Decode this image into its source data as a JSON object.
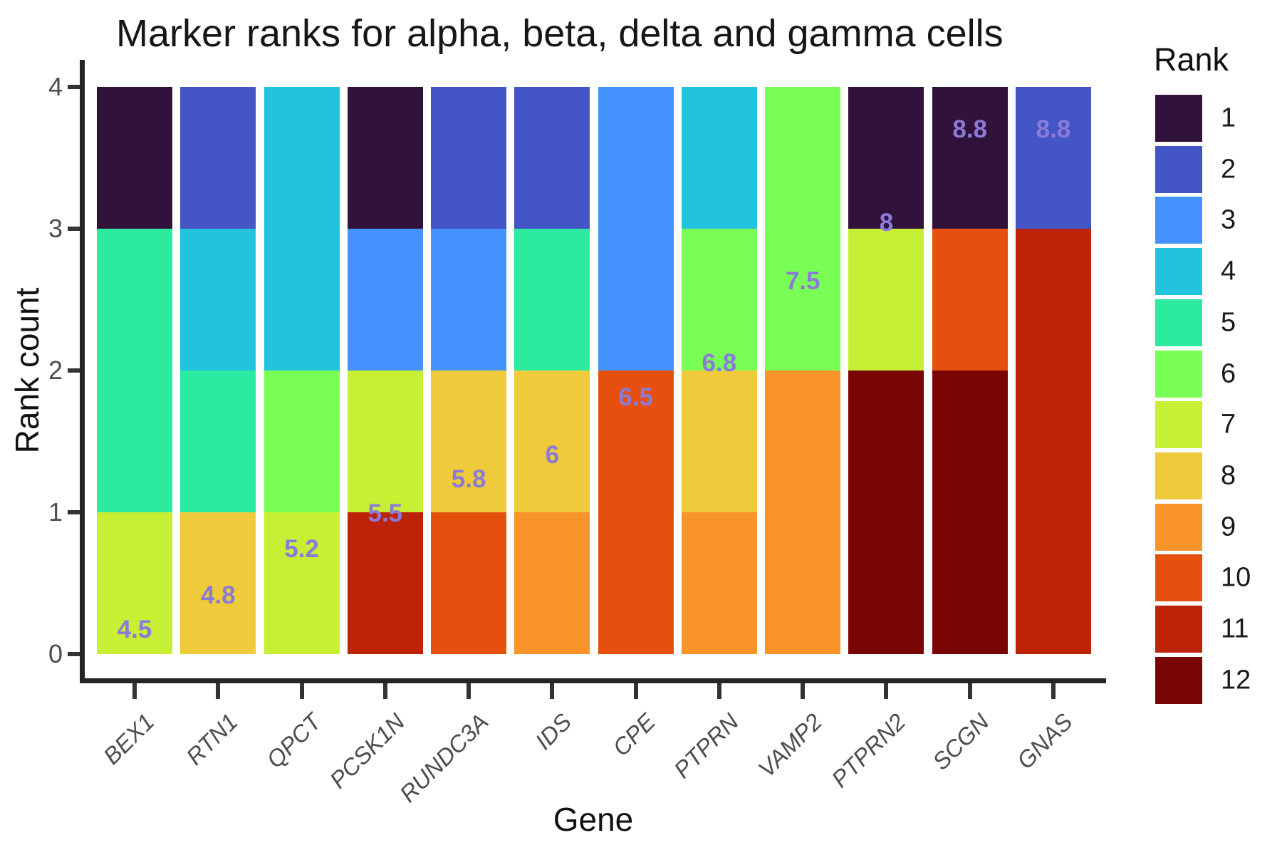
{
  "legend": {
    "title": "Rank",
    "entries": [
      "1",
      "2",
      "3",
      "4",
      "5",
      "6",
      "7",
      "8",
      "9",
      "10",
      "11",
      "12"
    ]
  },
  "style": {
    "mean_label_color": "#8C7AD9",
    "axis_line_color": "#252525",
    "tick_mark_color": "#333333",
    "tick_label_color": "#4d4d4d"
  },
  "chart_data": {
    "type": "bar",
    "stacked": true,
    "title": "Marker ranks for alpha, beta, delta and gamma cells",
    "xlabel": "Gene",
    "ylabel": "Rank count",
    "ylim": [
      0,
      4
    ],
    "y_ticks": [
      "0",
      "1",
      "2",
      "3",
      "4"
    ],
    "grid": false,
    "legend_position": "right",
    "legend_title": "Rank",
    "categories": [
      "BEX1",
      "RTN1",
      "QPCT",
      "PCSK1N",
      "RUNDC3A",
      "IDS",
      "CPE",
      "PTPRN",
      "VAMP2",
      "PTPRN2",
      "SCGN",
      "GNAS"
    ],
    "rank_colors": {
      "1": "#30123B",
      "2": "#4455C6",
      "3": "#4392FE",
      "4": "#22C3DD",
      "5": "#2CEBA1",
      "6": "#79FE55",
      "7": "#C7EF34",
      "8": "#EFCA3A",
      "9": "#F9942A",
      "10": "#E6500F",
      "11": "#BC2309",
      "12": "#7A0603"
    },
    "bars": [
      {
        "gene": "BEX1",
        "mean_rank_label": "4.5",
        "label_y": 0.17,
        "segments": [
          {
            "rank": 7,
            "count": 1
          },
          {
            "rank": 5,
            "count": 2
          },
          {
            "rank": 1,
            "count": 1
          }
        ]
      },
      {
        "gene": "RTN1",
        "mean_rank_label": "4.8",
        "label_y": 0.41,
        "segments": [
          {
            "rank": 8,
            "count": 1
          },
          {
            "rank": 5,
            "count": 1
          },
          {
            "rank": 4,
            "count": 1
          },
          {
            "rank": 2,
            "count": 1
          }
        ]
      },
      {
        "gene": "QPCT",
        "mean_rank_label": "5.2",
        "label_y": 0.74,
        "segments": [
          {
            "rank": 7,
            "count": 1
          },
          {
            "rank": 6,
            "count": 1
          },
          {
            "rank": 4,
            "count": 2
          }
        ]
      },
      {
        "gene": "PCSK1N",
        "mean_rank_label": "5.5",
        "label_y": 0.99,
        "segments": [
          {
            "rank": 11,
            "count": 1
          },
          {
            "rank": 7,
            "count": 1
          },
          {
            "rank": 3,
            "count": 1
          },
          {
            "rank": 1,
            "count": 1
          }
        ]
      },
      {
        "gene": "RUNDC3A",
        "mean_rank_label": "5.8",
        "label_y": 1.23,
        "segments": [
          {
            "rank": 10,
            "count": 1
          },
          {
            "rank": 8,
            "count": 1
          },
          {
            "rank": 3,
            "count": 1
          },
          {
            "rank": 2,
            "count": 1
          }
        ]
      },
      {
        "gene": "IDS",
        "mean_rank_label": "6",
        "label_y": 1.4,
        "segments": [
          {
            "rank": 9,
            "count": 1
          },
          {
            "rank": 8,
            "count": 1
          },
          {
            "rank": 5,
            "count": 1
          },
          {
            "rank": 2,
            "count": 1
          }
        ]
      },
      {
        "gene": "CPE",
        "mean_rank_label": "6.5",
        "label_y": 1.81,
        "segments": [
          {
            "rank": 10,
            "count": 2
          },
          {
            "rank": 3,
            "count": 2
          }
        ]
      },
      {
        "gene": "PTPRN",
        "mean_rank_label": "6.8",
        "label_y": 2.05,
        "segments": [
          {
            "rank": 9,
            "count": 1
          },
          {
            "rank": 8,
            "count": 1
          },
          {
            "rank": 6,
            "count": 1
          },
          {
            "rank": 4,
            "count": 1
          }
        ]
      },
      {
        "gene": "VAMP2",
        "mean_rank_label": "7.5",
        "label_y": 2.63,
        "segments": [
          {
            "rank": 9,
            "count": 2
          },
          {
            "rank": 6,
            "count": 2
          }
        ]
      },
      {
        "gene": "PTPRN2",
        "mean_rank_label": "8",
        "label_y": 3.04,
        "segments": [
          {
            "rank": 12,
            "count": 2
          },
          {
            "rank": 7,
            "count": 1
          },
          {
            "rank": 1,
            "count": 1
          }
        ]
      },
      {
        "gene": "SCGN",
        "mean_rank_label": "8.8",
        "label_y": 3.7,
        "segments": [
          {
            "rank": 12,
            "count": 2
          },
          {
            "rank": 10,
            "count": 1
          },
          {
            "rank": 1,
            "count": 1
          }
        ]
      },
      {
        "gene": "GNAS",
        "mean_rank_label": "8.8",
        "label_y": 3.7,
        "segments": [
          {
            "rank": 11,
            "count": 3
          },
          {
            "rank": 2,
            "count": 1
          }
        ]
      }
    ]
  }
}
